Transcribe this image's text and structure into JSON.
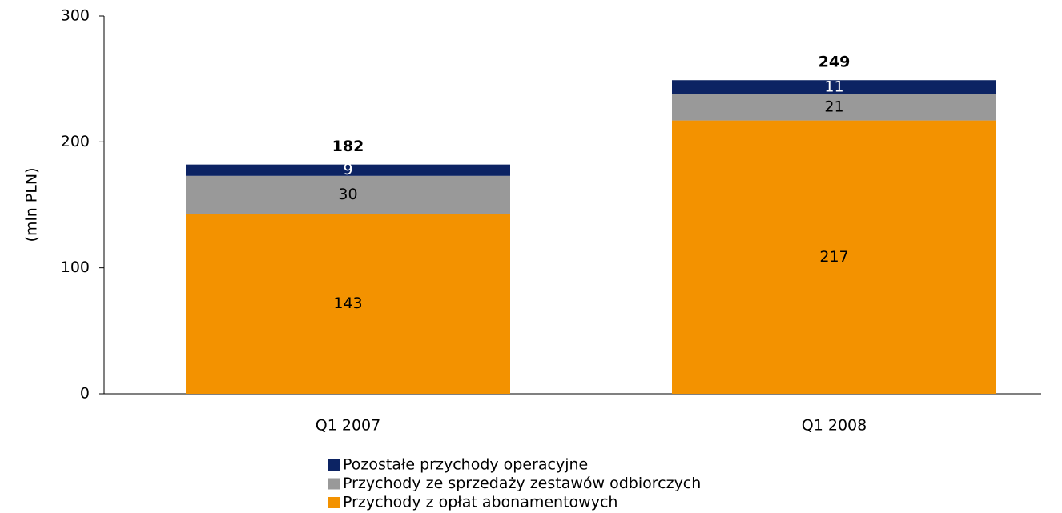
{
  "chart_data": {
    "type": "stacked_bar",
    "y_label": "(mln PLN)",
    "categories": [
      "Q1 2007",
      "Q1 2008"
    ],
    "series": [
      {
        "name": "Przychody z opłat abonamentowych",
        "color": "#f39200",
        "values": [
          143,
          217
        ]
      },
      {
        "name": "Przychody ze sprzedaży zestawów odbiorczych",
        "color": "#999999",
        "values": [
          30,
          21
        ]
      },
      {
        "name": "Pozostałe przychody operacyjne",
        "color": "#0c2363",
        "values": [
          9,
          11
        ]
      }
    ],
    "totals": [
      182,
      249
    ],
    "ylim": [
      0,
      300
    ],
    "yticks": [
      0,
      100,
      200,
      300
    ],
    "legend": "bottom"
  }
}
